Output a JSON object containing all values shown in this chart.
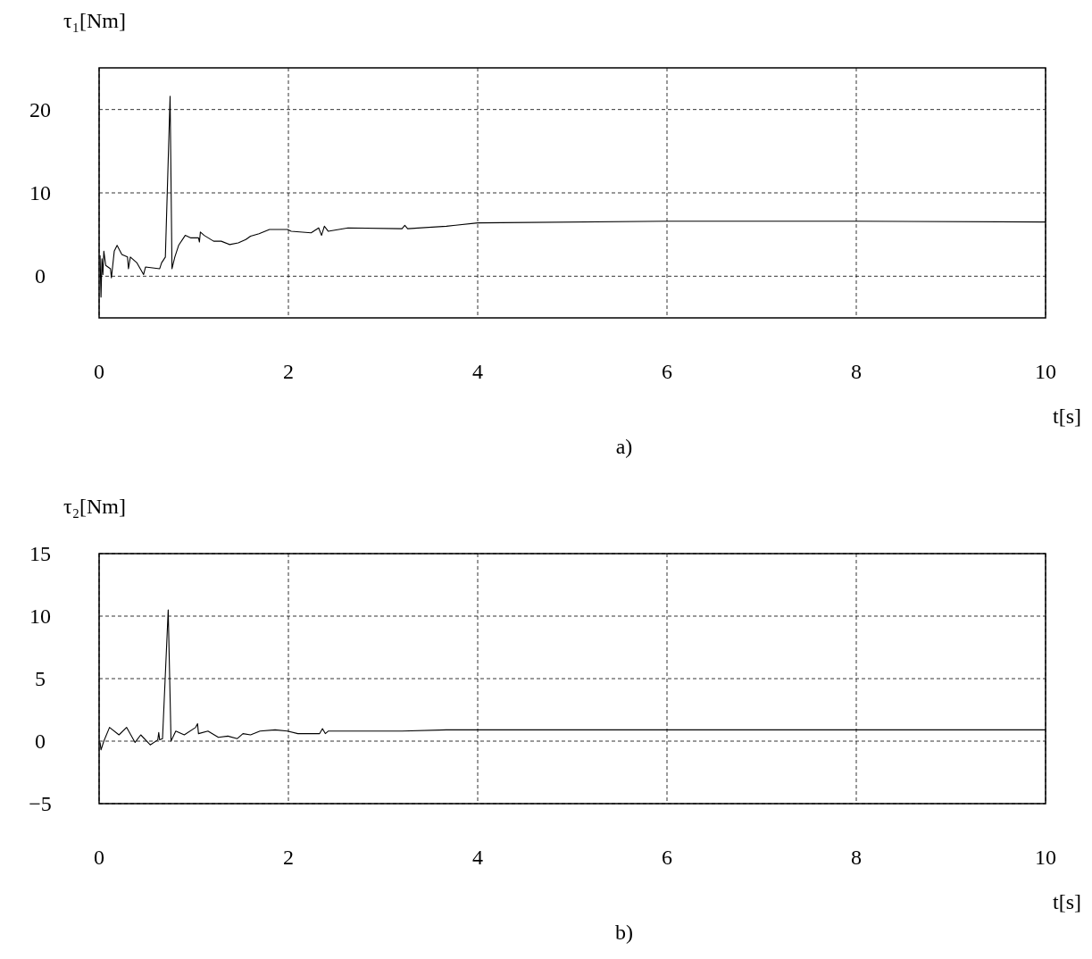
{
  "chart_data": [
    {
      "type": "line",
      "ylabel": "τ₁[Nm]",
      "xlabel": "t[s]",
      "annotations": [
        "a)"
      ],
      "xlim": [
        0,
        10
      ],
      "ylim": [
        -5,
        25
      ],
      "xticks": [
        0,
        2,
        4,
        6,
        8,
        10
      ],
      "yticks": [
        0,
        10,
        20
      ],
      "grid": true,
      "line_style": "solid",
      "marker": "none",
      "x": [
        0.01,
        0.02,
        0.03,
        0.04,
        0.05,
        0.07,
        0.12,
        0.13,
        0.16,
        0.19,
        0.24,
        0.3,
        0.31,
        0.33,
        0.4,
        0.47,
        0.49,
        0.64,
        0.66,
        0.7,
        0.75,
        0.77,
        0.8,
        0.84,
        0.91,
        0.97,
        1.05,
        1.06,
        1.07,
        1.11,
        1.21,
        1.29,
        1.38,
        1.47,
        1.55,
        1.6,
        1.69,
        1.8,
        1.99,
        2.03,
        2.24,
        2.32,
        2.35,
        2.38,
        2.42,
        2.63,
        3.2,
        3.23,
        3.26,
        3.67,
        4,
        6,
        8,
        10
      ],
      "series": [
        {
          "color": "#000000",
          "values": [
            2.5,
            -2.5,
            2.1,
            0.2,
            3.0,
            1.3,
            0.9,
            -0.2,
            3.0,
            3.7,
            2.6,
            2.3,
            0.9,
            2.3,
            1.6,
            0.2,
            1.1,
            0.9,
            1.6,
            2.3,
            21.6,
            0.9,
            2.3,
            3.7,
            4.9,
            4.6,
            4.6,
            4.1,
            5.3,
            4.9,
            4.2,
            4.2,
            3.8,
            4.0,
            4.4,
            4.8,
            5.1,
            5.6,
            5.6,
            5.4,
            5.2,
            5.8,
            4.9,
            6.0,
            5.4,
            5.8,
            5.7,
            6.1,
            5.7,
            6.0,
            6.4,
            6.6,
            6.6,
            6.5
          ]
        }
      ]
    },
    {
      "type": "line",
      "ylabel": "τ₂[Nm]",
      "xlabel": "t[s]",
      "annotations": [
        "b)"
      ],
      "xlim": [
        0,
        10
      ],
      "ylim": [
        -5,
        15
      ],
      "xticks": [
        0,
        2,
        4,
        6,
        8,
        10
      ],
      "yticks": [
        -5,
        0,
        5,
        10,
        15
      ],
      "grid": true,
      "line_style": "solid",
      "marker": "none",
      "x": [
        0.01,
        0.02,
        0.05,
        0.11,
        0.21,
        0.29,
        0.38,
        0.44,
        0.54,
        0.62,
        0.63,
        0.64,
        0.67,
        0.73,
        0.76,
        0.81,
        0.9,
        1.02,
        1.04,
        1.05,
        1.15,
        1.26,
        1.36,
        1.46,
        1.52,
        1.6,
        1.7,
        1.86,
        1.99,
        2.1,
        2.33,
        2.36,
        2.39,
        2.42,
        2.55,
        3.2,
        3.67,
        6,
        10
      ],
      "series": [
        {
          "color": "#000000",
          "values": [
            -0.1,
            -0.7,
            0,
            1.1,
            0.5,
            1.1,
            -0.1,
            0.5,
            -0.3,
            0.1,
            0.7,
            0.1,
            0.2,
            10.5,
            0,
            0.8,
            0.5,
            1.1,
            1.4,
            0.6,
            0.8,
            0.3,
            0.4,
            0.2,
            0.6,
            0.5,
            0.8,
            0.9,
            0.8,
            0.6,
            0.6,
            1.0,
            0.6,
            0.8,
            0.8,
            0.8,
            0.9,
            0.9,
            0.9
          ]
        }
      ]
    }
  ]
}
